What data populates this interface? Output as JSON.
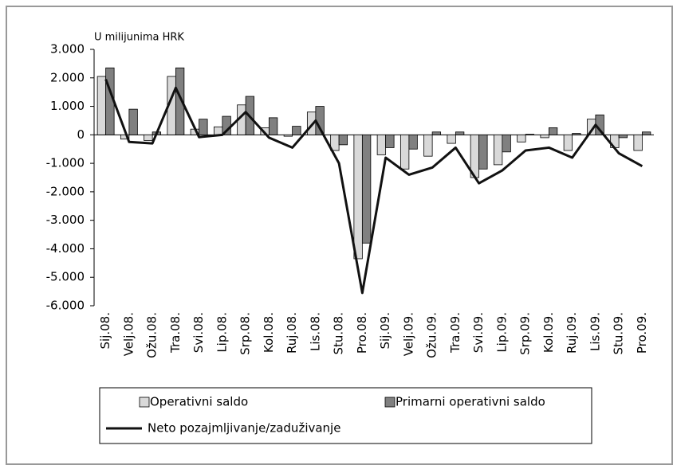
{
  "chart_data": {
    "type": "bar",
    "y_label": "U milijunima HRK",
    "categories": [
      "Sij.08.",
      "Velj.08.",
      "Ožu.08.",
      "Tra.08.",
      "Svi.08.",
      "Lip.08.",
      "Srp.08.",
      "Kol.08.",
      "Ruj.08.",
      "Lis.08.",
      "Stu.08.",
      "Pro.08.",
      "Sij.09.",
      "Velj.09.",
      "Ožu.09.",
      "Tra.09.",
      "Svi.09.",
      "Lip.09.",
      "Srp.09.",
      "Kol.09.",
      "Ruj.09.",
      "Lis.09.",
      "Stu.09.",
      "Pro.09."
    ],
    "series": [
      {
        "name": "Operativni saldo",
        "type": "bar",
        "color": "#d9d9d9",
        "values": [
          2050,
          -150,
          -200,
          2050,
          200,
          280,
          1050,
          250,
          -50,
          800,
          -550,
          -4350,
          -700,
          -1200,
          -750,
          -300,
          -1500,
          -1050,
          -250,
          -100,
          -550,
          550,
          -450,
          -550
        ]
      },
      {
        "name": "Primarni operativni saldo",
        "type": "bar",
        "color": "#808080",
        "values": [
          2350,
          900,
          100,
          2350,
          550,
          650,
          1350,
          600,
          300,
          1000,
          -350,
          -3800,
          -450,
          -500,
          100,
          100,
          -1200,
          -600,
          20,
          250,
          50,
          700,
          -100,
          100
        ]
      },
      {
        "name": "Neto pozajmljivanje/zaduživanje",
        "type": "line",
        "color": "#111111",
        "values": [
          1950,
          -250,
          -300,
          1650,
          -80,
          0,
          800,
          -100,
          -450,
          500,
          -1000,
          -5550,
          -800,
          -1400,
          -1150,
          -450,
          -1700,
          -1250,
          -550,
          -450,
          -800,
          350,
          -650,
          -1100
        ]
      }
    ],
    "ylim": [
      -6000,
      3000
    ],
    "yticks": [
      {
        "value": 3000,
        "label": "3.000"
      },
      {
        "value": 2000,
        "label": "2.000"
      },
      {
        "value": 1000,
        "label": "1.000"
      },
      0,
      {
        "value": -1000,
        "label": "-1.000"
      },
      {
        "value": -2000,
        "label": "-2.000"
      },
      {
        "value": -3000,
        "label": "-3.000"
      },
      {
        "value": -4000,
        "label": "-4.000"
      },
      {
        "value": -5000,
        "label": "-5.000"
      },
      {
        "value": -6000,
        "label": "-6.000"
      }
    ]
  }
}
